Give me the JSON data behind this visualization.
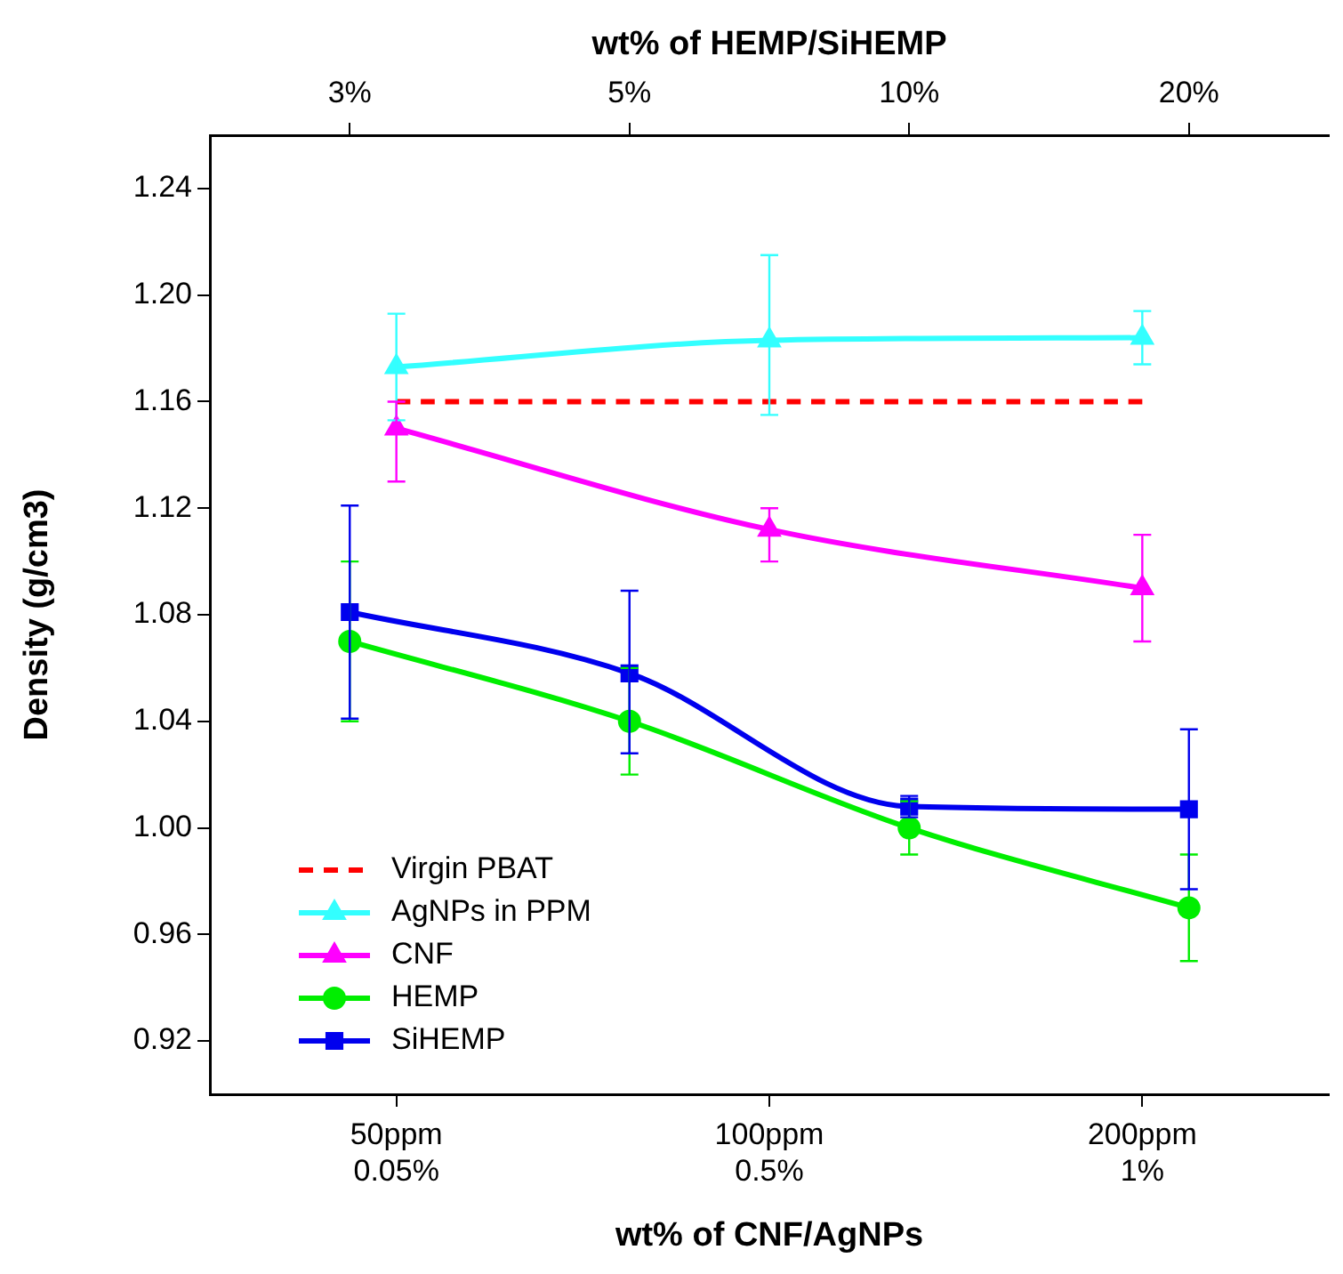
{
  "chart_data": [
    {
      "type": "line",
      "xlabel": "wt% of CNF/AgNPs",
      "ylabel": "Density (g/cm3)",
      "categories": [
        "50ppm\n0.05%",
        "100ppm\n0.5%",
        "200ppm\n1%"
      ],
      "ylim": [
        0.9,
        1.26
      ],
      "yticks": [
        0.92,
        0.96,
        {
          "value": 1,
          "label": "1.00"
        },
        1.04,
        1.08,
        1.12,
        1.16,
        {
          "value": 1.2,
          "label": "1.20"
        },
        1.24
      ],
      "grid": false,
      "legend": "bottom left",
      "series": [
        {
          "name": "Virgin PBAT",
          "color": "#ff0000",
          "values": [
            1.16,
            1.16,
            1.16
          ],
          "marker": "none",
          "line_style": "dashed"
        },
        {
          "name": "AgNPs in PPM",
          "color": "#33ffff",
          "values": [
            1.173,
            1.183,
            1.184
          ],
          "marker": "triangle",
          "errors": [
            [
              1.153,
              1.193
            ],
            [
              1.155,
              1.215
            ],
            [
              1.174,
              1.194
            ]
          ]
        },
        {
          "name": "CNF",
          "color": "#ff00ff",
          "values": [
            1.15,
            1.112,
            1.09
          ],
          "marker": "triangle",
          "errors": [
            [
              1.13,
              1.16
            ],
            [
              1.1,
              1.12
            ],
            [
              1.07,
              1.11
            ]
          ]
        }
      ]
    },
    {
      "type": "line",
      "xlabel": "wt% of HEMP/SiHEMP",
      "categories": [
        "3%",
        "5%",
        "10%",
        "20%"
      ],
      "ylim": [
        0.9,
        1.26
      ],
      "tick_labels": "x",
      "grid": false,
      "legend": "bottom left",
      "series": [
        {
          "name": "HEMP",
          "color": "#00ee00",
          "values": [
            1.07,
            1.04,
            1.0,
            0.97
          ],
          "marker": "circle",
          "errors": [
            [
              1.04,
              1.1
            ],
            [
              1.02,
              1.06
            ],
            [
              0.99,
              1.01
            ],
            [
              0.95,
              0.99
            ]
          ]
        },
        {
          "name": "SiHEMP",
          "color": "#0000ee",
          "values": [
            1.081,
            1.058,
            1.008,
            1.007
          ],
          "marker": "square",
          "errors": [
            [
              1.041,
              1.121
            ],
            [
              1.028,
              1.089
            ],
            [
              1.004,
              1.012
            ],
            [
              0.977,
              1.037
            ]
          ]
        }
      ]
    }
  ]
}
